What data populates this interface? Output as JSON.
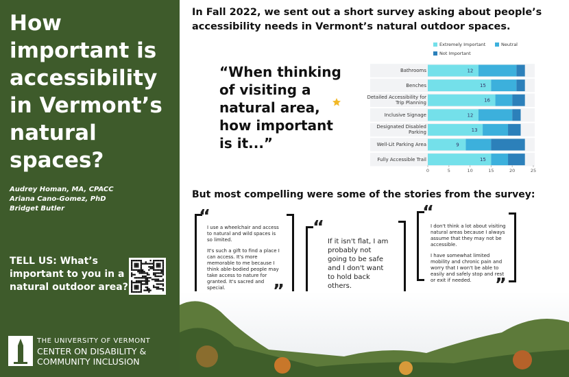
{
  "sidebar": {
    "title": "How important is accessibility in Vermont’s natural spaces?",
    "authors": [
      "Audrey Homan, MA, CPACC",
      "Ariana Cano-Gomez, PhD",
      "Bridget Butler"
    ],
    "call_to_action": "TELL US: What’s important to you in a natural outdoor area?",
    "logo": [
      "THE UNIVERSITY OF VERMONT",
      "CENTER ON DISABILITY &",
      "COMMUNITY INCLUSION"
    ]
  },
  "intro": "In Fall 2022, we sent out a short survey asking about people’s accessibility needs in Vermont’s natural outdoor spaces.",
  "question": "“When thinking of visiting a natural area, how important is it...”",
  "chart_data": {
    "type": "stacked_bar_horizontal",
    "categories": [
      "Bathrooms",
      "Benches",
      "Detailed Accessibility for Trip Planning",
      "Inclusive Signage",
      "Designated Disabled Parking",
      "Well-Lit Parking Area",
      "Fully Accessible Trail"
    ],
    "series": [
      {
        "name": "Extremely Important",
        "color": "#74e0ea",
        "values": [
          12,
          15,
          16,
          12,
          13,
          9,
          15
        ]
      },
      {
        "name": "Neutral",
        "color": "#3cb0dc",
        "values": [
          9,
          6,
          4,
          8,
          6,
          6,
          4
        ]
      },
      {
        "name": "Not Important",
        "color": "#2c80ba",
        "values": [
          2,
          2,
          3,
          2,
          3,
          8,
          4
        ]
      }
    ],
    "xlim": [
      0,
      25
    ],
    "xticks": [
      0,
      5,
      10,
      15,
      20,
      25
    ]
  },
  "stories_heading": "But most compelling were some of the stories from the survey:",
  "quote_marks": {
    "open": "“",
    "close": "”"
  },
  "stories": [
    [
      "I use a wheelchair and access to natural and wild spaces is so limited.",
      "It's such a gift to find a place I can access. It's more memorable to me because I think able-bodied people may take access to nature for granted. It's sacred and special."
    ],
    [
      "If it isn't flat, I am probably not going to be safe and I don't want to hold back others."
    ],
    [
      "I don't think a lot about visiting natural areas because I always assume that they may not be accessible.",
      "I have somewhat limited mobility and chronic pain and worry that I won't be able to easily and safely stop and rest or exit if needed."
    ]
  ]
}
